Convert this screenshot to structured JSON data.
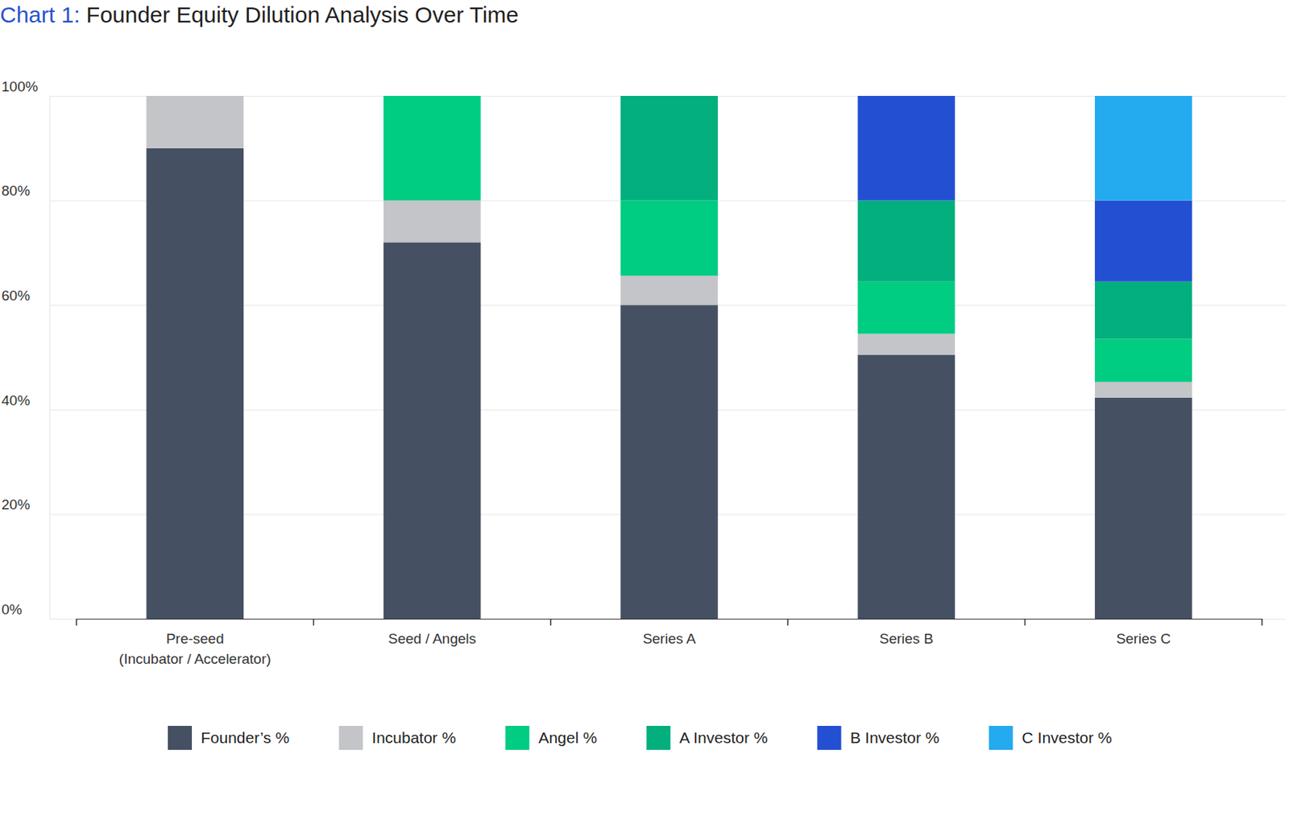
{
  "chart_data": {
    "type": "bar",
    "title": "Chart 1: Founder Equity Dilution Analysis Over Time",
    "categories": [
      "Pre-seed\n(Incubator / Accelerator)",
      "Seed / Angels",
      "Series A",
      "Series B",
      "Series C"
    ],
    "stacked": true,
    "grid": true,
    "legend": "bottom",
    "ylim": [
      0,
      100
    ],
    "yticks": [
      {
        "value": 0,
        "label": "0%"
      },
      {
        "value": 20,
        "label": "20%"
      },
      {
        "value": 40,
        "label": "40%"
      },
      {
        "value": 60,
        "label": "60%"
      },
      {
        "value": 80,
        "label": "80%"
      },
      {
        "value": 100,
        "label": "100%"
      }
    ],
    "series": [
      {
        "name": "Founder’s %",
        "color": "#455063",
        "values": [
          90,
          72,
          60,
          50.5,
          42.3
        ]
      },
      {
        "name": "Incubator %",
        "color": "#c4c5c8",
        "values": [
          10,
          8,
          5.6,
          4,
          3
        ]
      },
      {
        "name": "Angel %",
        "color": "#00cc82",
        "values": [
          null,
          20,
          14.4,
          10,
          8.2
        ]
      },
      {
        "name": "A Investor %",
        "color": "#02af7d",
        "values": [
          null,
          null,
          20,
          15.5,
          11
        ]
      },
      {
        "name": "B Investor %",
        "color": "#2350d2",
        "values": [
          null,
          null,
          null,
          20,
          15.5
        ]
      },
      {
        "name": "C Investor %",
        "color": "#24aaee",
        "values": [
          null,
          null,
          null,
          null,
          20
        ]
      }
    ]
  }
}
